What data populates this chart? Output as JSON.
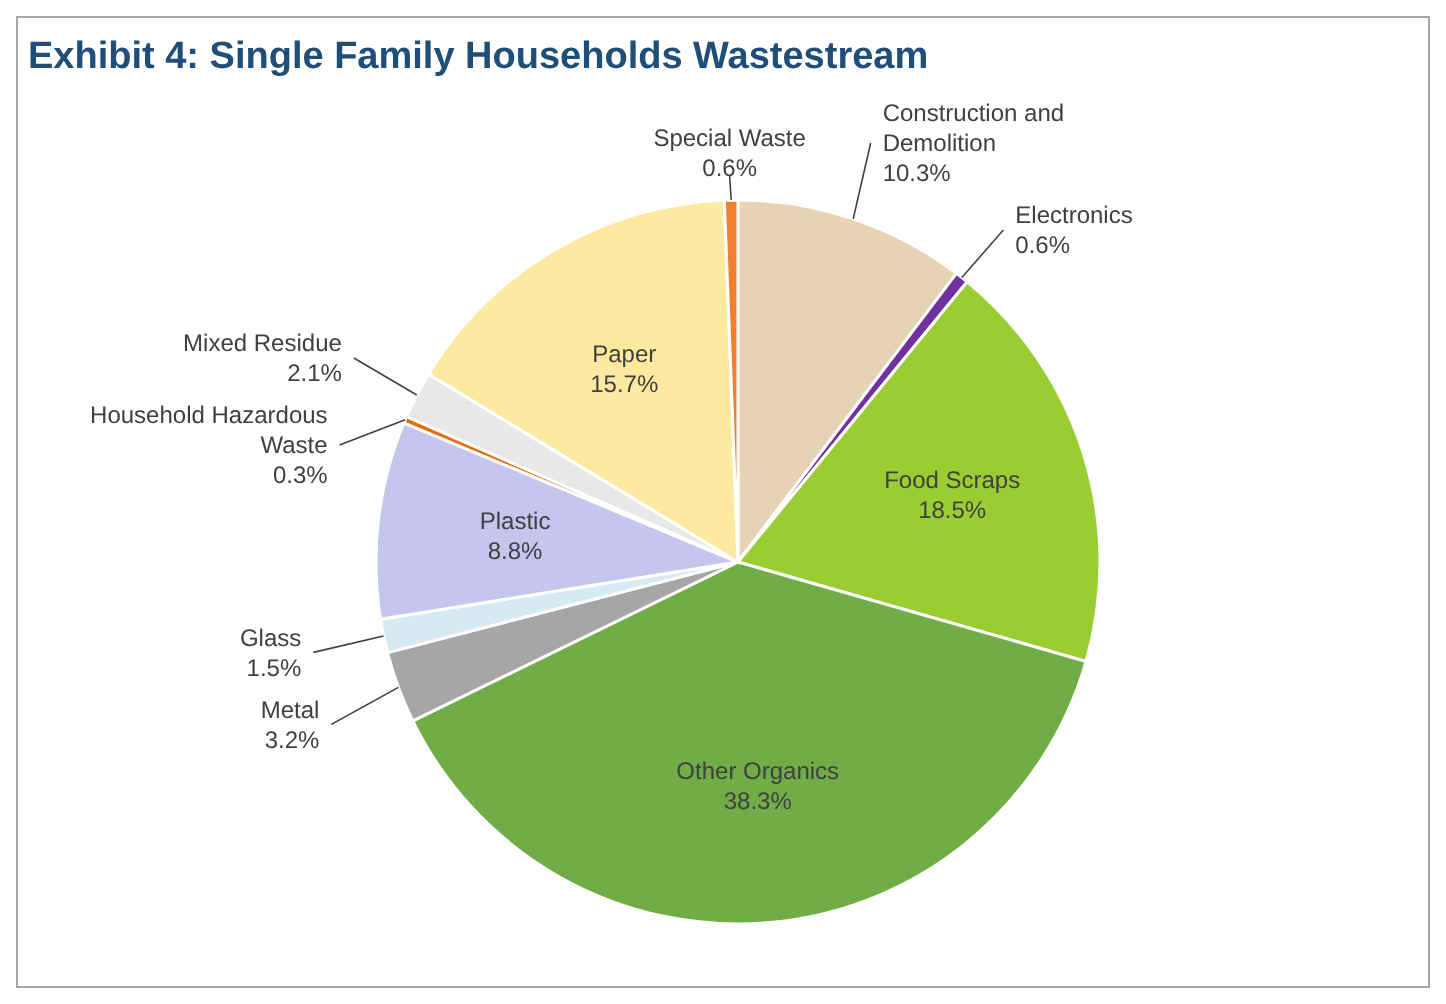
{
  "chart_data": {
    "type": "pie",
    "title": "Exhibit 4: Single Family Households Wastestream",
    "categories": [
      "Construction and Demolition",
      "Electronics",
      "Food Scraps",
      "Other Organics",
      "Metal",
      "Glass",
      "Plastic",
      "Household Hazardous Waste",
      "Mixed Residue",
      "Paper",
      "Special Waste"
    ],
    "values": [
      10.3,
      0.6,
      18.5,
      38.3,
      3.2,
      1.5,
      8.8,
      0.3,
      2.1,
      15.7,
      0.6
    ],
    "colors": [
      "#e6d3b3",
      "#7030a0",
      "#9acd32",
      "#70ad47",
      "#a6a6a6",
      "#d6eaf5",
      "#c5c5ee",
      "#e46c0a",
      "#e8e8e8",
      "#fde9a0",
      "#f08030"
    ],
    "value_labels": [
      "10.3%",
      "0.6%",
      "18.5%",
      "38.3%",
      "3.2%",
      "1.5%",
      "8.8%",
      "0.3%",
      "2.1%",
      "15.7%",
      "0.6%"
    ]
  }
}
